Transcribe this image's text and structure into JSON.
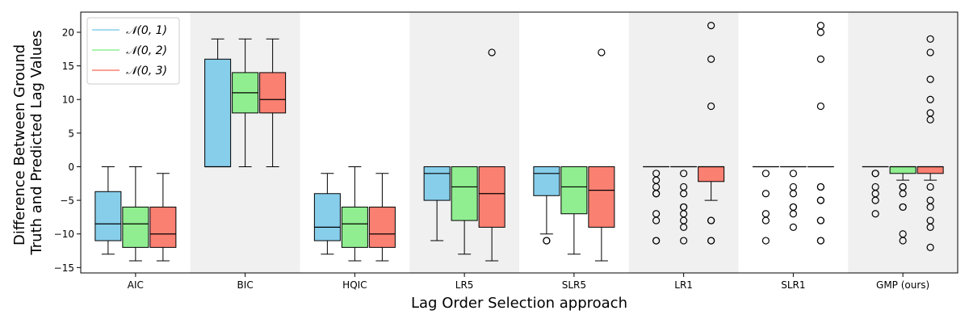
{
  "chart_data": {
    "type": "box",
    "xlabel": "Lag Order Selection approach",
    "ylabel_lines": [
      "Difference Between Ground",
      "Truth and Predicted Lag Values"
    ],
    "ylim": [
      -15.8,
      23.0
    ],
    "yticks": [
      -15,
      -10,
      -5,
      0,
      5,
      10,
      15,
      20
    ],
    "categories": [
      "AIC",
      "BIC",
      "HQIC",
      "LR5",
      "SLR5",
      "LR1",
      "SLR1",
      "GMP (ours)"
    ],
    "shaded_categories": [
      "BIC",
      "LR5",
      "LR1",
      "GMP (ours)"
    ],
    "legend": {
      "placement": "top-left",
      "entries": [
        "𝒩(0, 1)",
        "𝒩(0, 2)",
        "𝒩(0, 3)"
      ]
    },
    "series": [
      {
        "color": "#87CEEB",
        "boxes": [
          {
            "category": "AIC",
            "whislo": -13,
            "q1": -11,
            "med": -8.5,
            "q3": -3.7,
            "whishi": 0,
            "fliers": []
          },
          {
            "category": "BIC",
            "whislo": 0,
            "q1": 0,
            "med": 0,
            "q3": 16,
            "whishi": 19,
            "fliers": []
          },
          {
            "category": "HQIC",
            "whislo": -13,
            "q1": -11,
            "med": -9,
            "q3": -4,
            "whishi": -1,
            "fliers": []
          },
          {
            "category": "LR5",
            "whislo": -11,
            "q1": -5,
            "med": -1,
            "q3": 0,
            "whishi": 0,
            "fliers": []
          },
          {
            "category": "SLR5",
            "whislo": -10,
            "q1": -4.3,
            "med": -1,
            "q3": 0,
            "whishi": 0,
            "fliers": [
              -11,
              -11
            ]
          },
          {
            "category": "LR1",
            "whislo": 0,
            "q1": 0,
            "med": 0,
            "q3": 0,
            "whishi": 0,
            "fliers": [
              -1,
              -2,
              -3,
              -4,
              -4,
              -7,
              -8,
              -11,
              -11
            ]
          },
          {
            "category": "SLR1",
            "whislo": 0,
            "q1": 0,
            "med": 0,
            "q3": 0,
            "whishi": 0,
            "fliers": [
              -1,
              -4,
              -7,
              -8,
              -11
            ]
          },
          {
            "category": "GMP (ours)",
            "whislo": 0,
            "q1": 0,
            "med": 0,
            "q3": 0,
            "whishi": 0,
            "fliers": [
              -1,
              -1,
              -3,
              -4,
              -5,
              -7
            ]
          }
        ]
      },
      {
        "color": "#90EE90",
        "boxes": [
          {
            "category": "AIC",
            "whislo": -14,
            "q1": -12,
            "med": -8.5,
            "q3": -6,
            "whishi": 0,
            "fliers": []
          },
          {
            "category": "BIC",
            "whislo": 0,
            "q1": 8,
            "med": 11,
            "q3": 14,
            "whishi": 19,
            "fliers": []
          },
          {
            "category": "HQIC",
            "whislo": -14,
            "q1": -12,
            "med": -8.5,
            "q3": -6,
            "whishi": 0,
            "fliers": []
          },
          {
            "category": "LR5",
            "whislo": -13,
            "q1": -8,
            "med": -3,
            "q3": 0,
            "whishi": 0,
            "fliers": []
          },
          {
            "category": "SLR5",
            "whislo": -13,
            "q1": -7,
            "med": -3,
            "q3": 0,
            "whishi": 0,
            "fliers": []
          },
          {
            "category": "LR1",
            "whislo": 0,
            "q1": 0,
            "med": 0,
            "q3": 0,
            "whishi": 0,
            "fliers": [
              -1,
              -3,
              -4,
              -6,
              -6,
              -7,
              -8,
              -9,
              -11
            ]
          },
          {
            "category": "SLR1",
            "whislo": 0,
            "q1": 0,
            "med": 0,
            "q3": 0,
            "whishi": 0,
            "fliers": [
              -1,
              -3,
              -4,
              -6,
              -6,
              -7,
              -9
            ]
          },
          {
            "category": "GMP (ours)",
            "whislo": -2,
            "q1": -1,
            "med": 0,
            "q3": 0,
            "whishi": 0,
            "fliers": [
              -3,
              -3,
              -4,
              -6,
              -6,
              -10,
              -11
            ]
          }
        ]
      },
      {
        "color": "#FA8072",
        "boxes": [
          {
            "category": "AIC",
            "whislo": -14,
            "q1": -12,
            "med": -10,
            "q3": -6,
            "whishi": -1,
            "fliers": []
          },
          {
            "category": "BIC",
            "whislo": 0,
            "q1": 8,
            "med": 10,
            "q3": 14,
            "whishi": 19,
            "fliers": []
          },
          {
            "category": "HQIC",
            "whislo": -14,
            "q1": -12,
            "med": -10,
            "q3": -6,
            "whishi": -1,
            "fliers": []
          },
          {
            "category": "LR5",
            "whislo": -14,
            "q1": -9,
            "med": -4,
            "q3": 0,
            "whishi": 0,
            "fliers": [
              17
            ]
          },
          {
            "category": "SLR5",
            "whislo": -14,
            "q1": -9,
            "med": -3.5,
            "q3": 0,
            "whishi": 0,
            "fliers": [
              17
            ]
          },
          {
            "category": "LR1",
            "whislo": -5,
            "q1": -2.2,
            "med": 0,
            "q3": 0,
            "whishi": 0,
            "fliers": [
              21,
              16,
              9,
              -8,
              -8,
              -11,
              -11
            ]
          },
          {
            "category": "SLR1",
            "whislo": 0,
            "q1": 0,
            "med": 0,
            "q3": 0,
            "whishi": 0,
            "fliers": [
              21,
              20,
              16,
              9,
              -3,
              -3,
              -5,
              -5,
              -8,
              -8,
              -11,
              -11
            ]
          },
          {
            "category": "GMP (ours)",
            "whislo": -2,
            "q1": -1,
            "med": 0,
            "q3": 0,
            "whishi": 0,
            "fliers": [
              19,
              17,
              13,
              10,
              8,
              7,
              -3,
              -5,
              -6,
              -8,
              -9,
              -12
            ]
          }
        ]
      }
    ]
  }
}
